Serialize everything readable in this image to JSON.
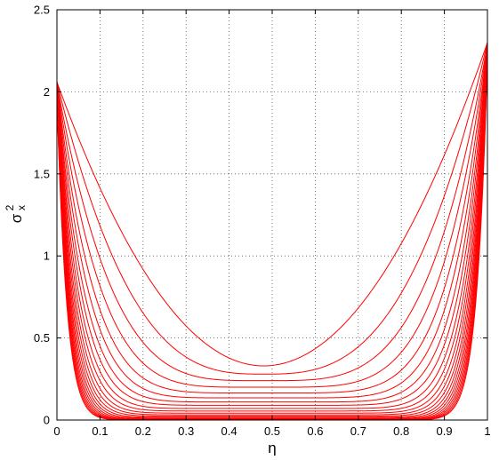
{
  "chart_data": {
    "type": "line",
    "xlabel": "η",
    "ylabel_main": "σ",
    "ylabel_sup": "2",
    "ylabel_sub": "x",
    "xlim": [
      0,
      1
    ],
    "ylim": [
      0,
      2.5
    ],
    "xticks": [
      0,
      0.1,
      0.2,
      0.3,
      0.4,
      0.5,
      0.6,
      0.7,
      0.8,
      0.9,
      1
    ],
    "xtick_labels": [
      "0",
      "0.1",
      "0.2",
      "0.3",
      "0.4",
      "0.5",
      "0.6",
      "0.7",
      "0.8",
      "0.9",
      "1"
    ],
    "yticks": [
      0,
      0.5,
      1,
      1.5,
      2,
      2.5
    ],
    "ytick_labels": [
      "0",
      "0.5",
      "1",
      "1.5",
      "2",
      "2.5"
    ],
    "grid": true,
    "line_color": "#ff0000",
    "curve_family": {
      "count": 22,
      "left_value_at_0": [
        2.06,
        2.06,
        2.05,
        2.05,
        2.04,
        2.04,
        2.03,
        2.03,
        2.02,
        2.02,
        2.01,
        2.01,
        2.0,
        2.0,
        1.99,
        1.99,
        1.98,
        1.98,
        1.97,
        1.97,
        1.96,
        1.96
      ],
      "right_value_at_1": [
        2.3,
        2.3,
        2.29,
        2.29,
        2.28,
        2.28,
        2.27,
        2.27,
        2.26,
        2.26,
        2.25,
        2.25,
        2.24,
        2.24,
        2.23,
        2.23,
        2.22,
        2.22,
        2.21,
        2.21,
        2.2,
        2.2
      ],
      "minimum_value": [
        0.33,
        0.28,
        0.24,
        0.2,
        0.165,
        0.135,
        0.11,
        0.09,
        0.07,
        0.055,
        0.042,
        0.032,
        0.024,
        0.017,
        0.012,
        0.008,
        0.005,
        0.003,
        0.002,
        0.001,
        0.0005,
        0.0002
      ],
      "minimum_location": 0.48
    }
  }
}
